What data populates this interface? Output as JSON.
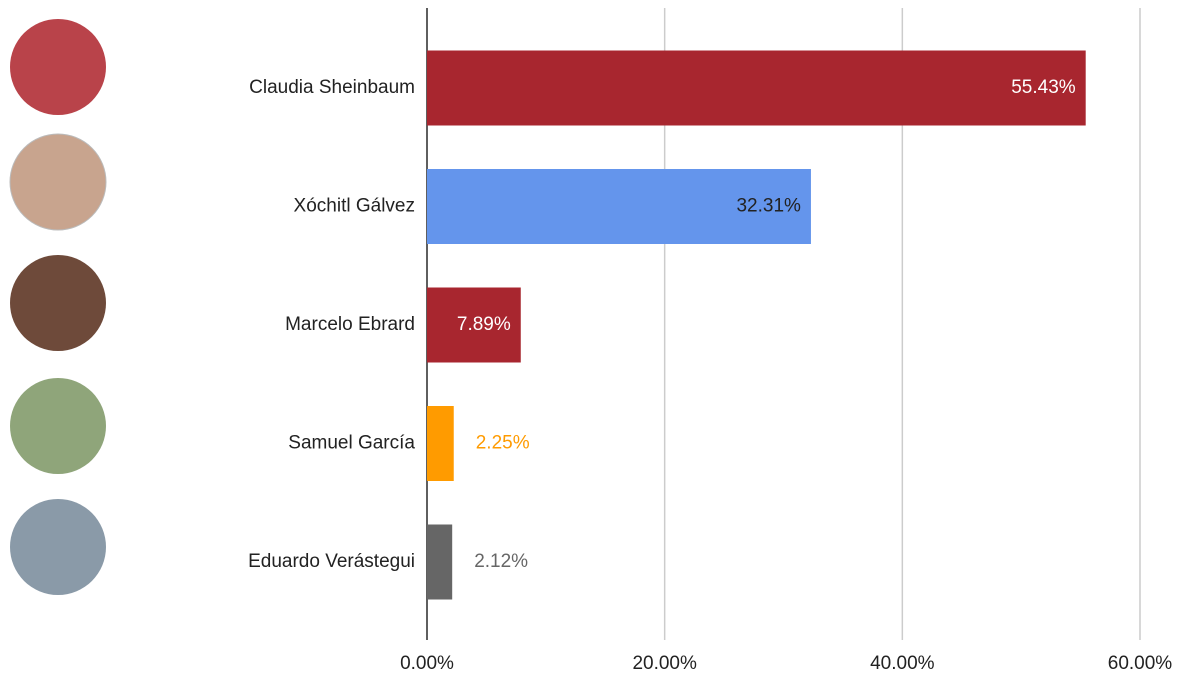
{
  "chart_data": {
    "type": "bar",
    "orientation": "horizontal",
    "categories": [
      "Claudia Sheinbaum",
      "Xóchitl Gálvez",
      "Marcelo Ebrard",
      "Samuel García",
      "Eduardo Verástegui"
    ],
    "values": [
      55.43,
      32.31,
      7.89,
      2.25,
      2.12
    ],
    "value_labels": [
      "55.43%",
      "32.31%",
      "7.89%",
      "2.25%",
      "2.12%"
    ],
    "colors": [
      "#a8262f",
      "#6495ec",
      "#a8262f",
      "#ff9b00",
      "#666666"
    ],
    "xlim": [
      0,
      60
    ],
    "xticks": [
      {
        "value": 0,
        "label": "0.00%"
      },
      {
        "value": 20,
        "label": "20.00%"
      },
      {
        "value": 40,
        "label": "40.00%"
      },
      {
        "value": 60,
        "label": "60.00%"
      }
    ],
    "grid": true
  }
}
